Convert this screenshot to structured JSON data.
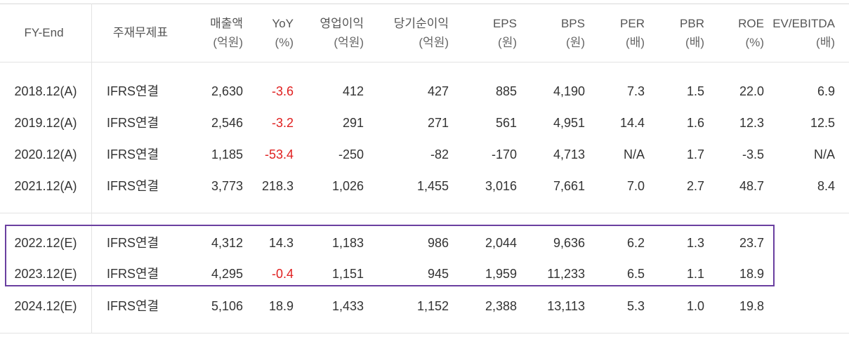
{
  "headers": [
    {
      "l1": "FY-End",
      "l2": ""
    },
    {
      "l1": "주재무제표",
      "l2": ""
    },
    {
      "l1": "매출액",
      "l2": "(억원)"
    },
    {
      "l1": "YoY",
      "l2": "(%)"
    },
    {
      "l1": "영업이익",
      "l2": "(억원)"
    },
    {
      "l1": "당기순이익",
      "l2": "(억원)"
    },
    {
      "l1": "EPS",
      "l2": "(원)"
    },
    {
      "l1": "BPS",
      "l2": "(원)"
    },
    {
      "l1": "PER",
      "l2": "(배)"
    },
    {
      "l1": "PBR",
      "l2": "(배)"
    },
    {
      "l1": "ROE",
      "l2": "(%)"
    },
    {
      "l1": "EV/EBITDA",
      "l2": "(배)"
    }
  ],
  "rows": [
    {
      "fy": "2018.12(A)",
      "std": "IFRS연결",
      "revenue": "2,630",
      "yoy": "-3.6",
      "op": "412",
      "net": "427",
      "eps": "885",
      "bps": "4,190",
      "per": "7.3",
      "pbr": "1.5",
      "roe": "22.0",
      "ev": "6.9"
    },
    {
      "fy": "2019.12(A)",
      "std": "IFRS연결",
      "revenue": "2,546",
      "yoy": "-3.2",
      "op": "291",
      "net": "271",
      "eps": "561",
      "bps": "4,951",
      "per": "14.4",
      "pbr": "1.6",
      "roe": "12.3",
      "ev": "12.5"
    },
    {
      "fy": "2020.12(A)",
      "std": "IFRS연결",
      "revenue": "1,185",
      "yoy": "-53.4",
      "op": "-250",
      "net": "-82",
      "eps": "-170",
      "bps": "4,713",
      "per": "N/A",
      "pbr": "1.7",
      "roe": "-3.5",
      "ev": "N/A"
    },
    {
      "fy": "2021.12(A)",
      "std": "IFRS연결",
      "revenue": "3,773",
      "yoy": "218.3",
      "op": "1,026",
      "net": "1,455",
      "eps": "3,016",
      "bps": "7,661",
      "per": "7.0",
      "pbr": "2.7",
      "roe": "48.7",
      "ev": "8.4"
    },
    {
      "fy": "2022.12(E)",
      "std": "IFRS연결",
      "revenue": "4,312",
      "yoy": "14.3",
      "op": "1,183",
      "net": "986",
      "eps": "2,044",
      "bps": "9,636",
      "per": "6.2",
      "pbr": "1.3",
      "roe": "23.7",
      "ev": ""
    },
    {
      "fy": "2023.12(E)",
      "std": "IFRS연결",
      "revenue": "4,295",
      "yoy": "-0.4",
      "op": "1,151",
      "net": "945",
      "eps": "1,959",
      "bps": "11,233",
      "per": "6.5",
      "pbr": "1.1",
      "roe": "18.9",
      "ev": ""
    },
    {
      "fy": "2024.12(E)",
      "std": "IFRS연결",
      "revenue": "5,106",
      "yoy": "18.9",
      "op": "1,433",
      "net": "1,152",
      "eps": "2,388",
      "bps": "13,113",
      "per": "5.3",
      "pbr": "1.0",
      "roe": "19.8",
      "ev": ""
    }
  ],
  "colors": {
    "negative_yoy": "#e02020",
    "highlight_border": "#6a3fa0"
  }
}
